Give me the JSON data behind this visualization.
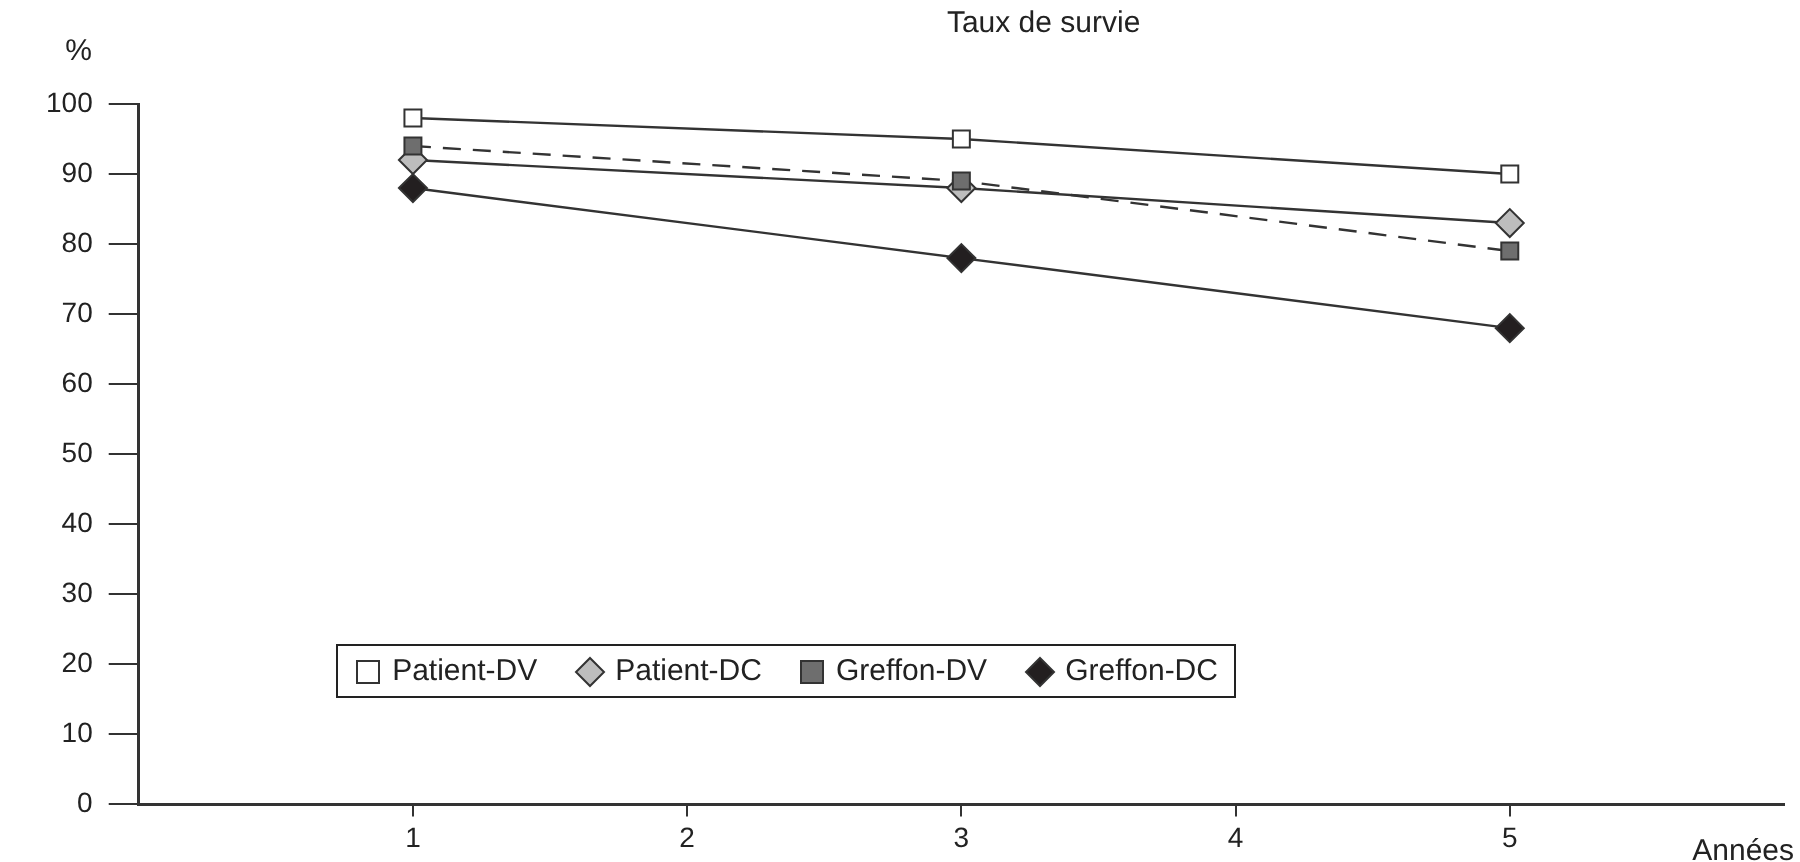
{
  "chart_data": {
    "type": "line",
    "title": "Taux de survie",
    "xlabel": "Années",
    "ylabel": "%",
    "x": [
      1,
      3,
      5
    ],
    "xlim": [
      0,
      6
    ],
    "xticks": [
      1,
      2,
      3,
      4,
      5
    ],
    "ylim": [
      0,
      100
    ],
    "yticks": [
      0,
      10,
      20,
      30,
      40,
      50,
      60,
      70,
      80,
      90,
      100
    ],
    "grid": false,
    "legend": "bottom",
    "series": [
      {
        "name": "Patient-DV",
        "color": "#ffffff",
        "marker": "square",
        "line_style": "solid",
        "values": [
          98,
          95,
          90
        ]
      },
      {
        "name": "Patient-DC",
        "color": "#bdbdbd",
        "marker": "diamond",
        "line_style": "solid",
        "values": [
          92,
          88,
          83
        ]
      },
      {
        "name": "Greffon-DV",
        "color": "#6e6e6e",
        "marker": "square",
        "line_style": "dashed",
        "values": [
          94,
          89,
          79
        ]
      },
      {
        "name": "Greffon-DC",
        "color": "#231f20",
        "marker": "diamond",
        "line_style": "solid",
        "values": [
          88,
          78,
          68
        ]
      }
    ]
  }
}
